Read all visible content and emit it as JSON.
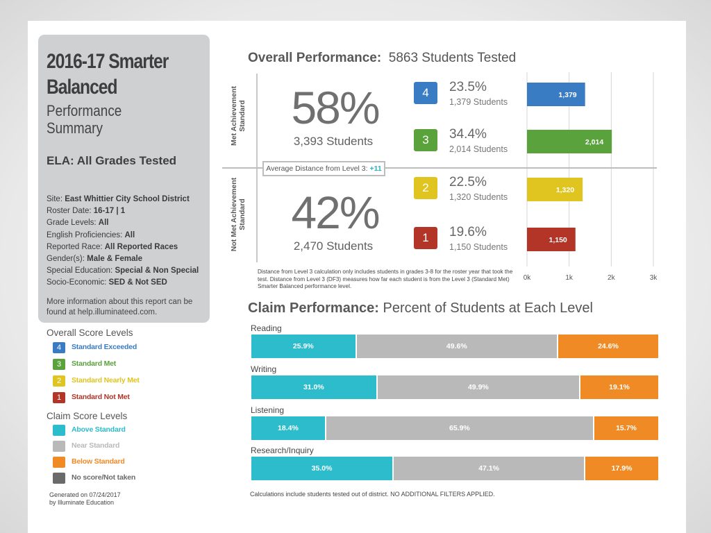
{
  "title": {
    "line1": "2016-17 Smarter",
    "line2": "Balanced",
    "light1": "Performance",
    "light2": "Summary"
  },
  "subject": "ELA: All Grades Tested",
  "filters": [
    {
      "label": "Site: ",
      "value": "East Whittier City School District"
    },
    {
      "label": "Roster Date: ",
      "value": "16-17 | 1"
    },
    {
      "label": "Grade Levels: ",
      "value": "All"
    },
    {
      "label": "English Proficiencies: ",
      "value": "All"
    },
    {
      "label": "Reported Race: ",
      "value": "All Reported Races"
    },
    {
      "label": "Gender(s):  ",
      "value": "Male & Female"
    },
    {
      "label": "Special Education:  ",
      "value": "Special & Non Special"
    },
    {
      "label": "Socio-Economic:  ",
      "value": "SED & Not SED"
    }
  ],
  "more_info": "More information about this report can be found at help.illuminateed.com.",
  "legend": {
    "overall_title": "Overall Score Levels",
    "overall": [
      {
        "num": "4",
        "label": "Standard Exceeded",
        "color": "#3a7cc4"
      },
      {
        "num": "3",
        "label": "Standard Met",
        "color": "#5aa23c"
      },
      {
        "num": "2",
        "label": "Standard Nearly Met",
        "color": "#e0c420"
      },
      {
        "num": "1",
        "label": "Standard Not Met",
        "color": "#b23527"
      }
    ],
    "claim_title": "Claim Score Levels",
    "claim": [
      {
        "label": "Above Standard",
        "color": "#2cbccb"
      },
      {
        "label": "Near Standard",
        "color": "#b9b9b9"
      },
      {
        "label": "Below Standard",
        "color": "#f08a25"
      },
      {
        "label": "No score/Not taken",
        "color": "#6a6a6a"
      }
    ]
  },
  "generated": {
    "line1": "Generated on 07/24/2017",
    "line2": "by Illuminate Education"
  },
  "overall": {
    "heading_bold": "Overall Performance:",
    "heading_rest": "5863 Students Tested",
    "met_label": "Met Achievement Standard",
    "notmet_label": "Not Met Achievement Standard",
    "met_pct": "58%",
    "met_students": "3,393 Students",
    "notmet_pct": "42%",
    "notmet_students": "2,470 Students",
    "avg_label": "Average Distance from Level 3:",
    "avg_value": "+11",
    "note": "Distance from Level 3 calculation only includes students in grades 3-8 for the roster year that took the test. Distance from Level 3 (DF3) measures how far each student is from the Level 3 (Standard Met) Smarter Balanced performance level."
  },
  "chart_data": [
    {
      "type": "bar",
      "orientation": "horizontal",
      "title": "Overall Performance",
      "categories": [
        "4",
        "3",
        "2",
        "1"
      ],
      "percents": [
        "23.5%",
        "34.4%",
        "22.5%",
        "19.6%"
      ],
      "student_counts": [
        "1,379 Students",
        "2,014 Students",
        "1,320 Students",
        "1,150 Students"
      ],
      "values": [
        1379,
        2014,
        1320,
        1150
      ],
      "value_labels": [
        "1,379",
        "2,014",
        "1,320",
        "1,150"
      ],
      "colors": [
        "#3a7cc4",
        "#5aa23c",
        "#e0c420",
        "#b23527"
      ],
      "xlim": [
        0,
        3000
      ],
      "xticks": [
        0,
        1000,
        2000,
        3000
      ],
      "xtick_labels": [
        "0k",
        "1k",
        "2k",
        "3k"
      ],
      "grid": true
    },
    {
      "type": "bar",
      "orientation": "horizontal",
      "stacked": true,
      "title": "Percent of Students at Each Level",
      "categories": [
        "Reading",
        "Writing",
        "Listening",
        "Research/Inquiry"
      ],
      "series": [
        {
          "name": "Above Standard",
          "color": "#2cbccb",
          "values": [
            25.9,
            31.0,
            18.4,
            35.0
          ]
        },
        {
          "name": "Near Standard",
          "color": "#b9b9b9",
          "values": [
            49.6,
            49.9,
            65.9,
            47.1
          ]
        },
        {
          "name": "Below Standard",
          "color": "#f08a25",
          "values": [
            24.6,
            19.1,
            15.7,
            17.9
          ]
        }
      ],
      "xlim": [
        0,
        100
      ]
    }
  ],
  "claim": {
    "heading_bold": "Claim Performance:",
    "heading_rest": "Percent of Students at Each Level",
    "note": "Calculations include students tested out of district. NO ADDITIONAL FILTERS APPLIED."
  }
}
